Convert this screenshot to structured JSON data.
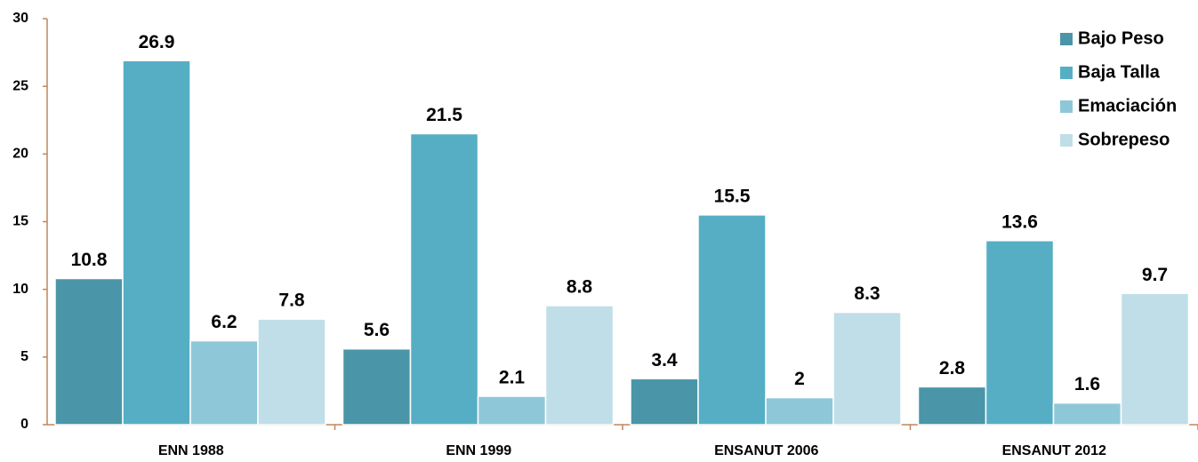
{
  "chart_data": {
    "type": "bar",
    "categories": [
      "ENN 1988",
      "ENN 1999",
      "ENSANUT 2006",
      "ENSANUT 2012"
    ],
    "series": [
      {
        "name": "Bajo Peso",
        "color": "#4a96a8",
        "values": [
          10.8,
          5.6,
          3.4,
          2.8
        ]
      },
      {
        "name": "Baja Talla",
        "color": "#56aec4",
        "values": [
          26.9,
          21.5,
          15.5,
          13.6
        ]
      },
      {
        "name": "Emaciación",
        "color": "#8ec8d8",
        "values": [
          6.2,
          2.1,
          2,
          1.6
        ]
      },
      {
        "name": "Sobrepeso",
        "color": "#c0dee8",
        "values": [
          7.8,
          8.8,
          8.3,
          9.7
        ]
      }
    ],
    "ylim": [
      0,
      30
    ],
    "yticks": [
      0,
      5,
      10,
      15,
      20,
      25,
      30
    ],
    "legend": "top-right",
    "grid": false
  }
}
